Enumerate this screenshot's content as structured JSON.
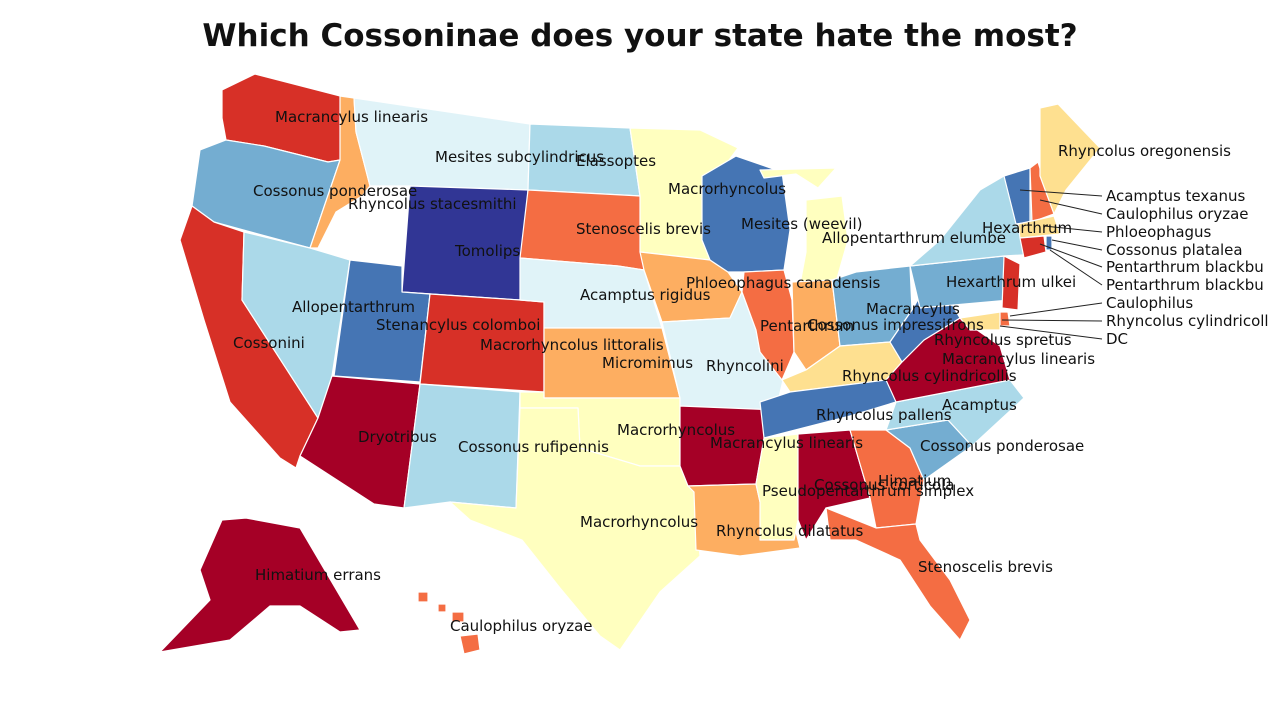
{
  "title": "Which Cossoninae does your state hate the most?",
  "colors": {
    "c1": "#a50026",
    "c2": "#d73027",
    "c3": "#f46d43",
    "c4": "#fdae61",
    "c5": "#fee090",
    "c6": "#ffffbf",
    "c7": "#e0f3f8",
    "c8": "#abd9e9",
    "c9": "#74add1",
    "c10": "#4575b4",
    "c11": "#313695"
  },
  "states": {
    "WA": "Macrancylus linearis",
    "OR": "Cossonus ponderosae",
    "CA": "Cossonini",
    "NV": "Allopentarthrum",
    "ID": "Rhyncolus stacesmithi",
    "MT": "Mesites subcylindricus",
    "WY": "Tomolips",
    "UT": "Stenancylus colomboi",
    "AZ": "Dryotribus",
    "CO": "Macrorhyncolus littoralis",
    "NM": "Cossonus rufipennis",
    "ND": "Elassoptes",
    "SD": "Stenoscelis brevis",
    "NE": "Acamptus rigidus",
    "KS": "Micromimus",
    "OK": "Macrorhyncolus",
    "TX": "Macrorhyncolus",
    "MN": "Macrorhyncolus",
    "IA": "Phloeophagus canadensis",
    "MO": "Rhyncolini",
    "AR": "Macrancylus linearis",
    "LA": "Rhyncolus dilatatus",
    "WI": "Mesites (weevil)",
    "IL": "Pentarthrum",
    "MI": "Allopentarthrum elumbe",
    "IN": "Cossonus impressifrons",
    "OH": "Macrancylus",
    "KY": "Rhyncolus cylindricollis",
    "TN": "Rhyncolus pallens",
    "MS": "Pseudopentarthrum simplex",
    "AL": "Cossonus corticola",
    "GA": "Himatium",
    "FL": "Stenoscelis brevis",
    "SC": "Cossonus ponderosae",
    "NC": "Acamptus",
    "VA": "Macrancylus linearis",
    "WV": "Rhyncolus spretus",
    "PA": "Hexarthrum ulkei",
    "NY": "Hexarthrum",
    "ME": "Rhyncolus oregonensis",
    "AK": "Himatium errans",
    "HI": "Caulophilus oryzae"
  },
  "callouts": [
    "Acamptus texanus",
    "Caulophilus oryzae",
    "Phloeophagus",
    "Cossonus platalea",
    "Pentarthrum blackbu",
    "Pentarthrum blackbu",
    "Caulophilus",
    "Rhyncolus cylindricoll",
    "DC"
  ]
}
